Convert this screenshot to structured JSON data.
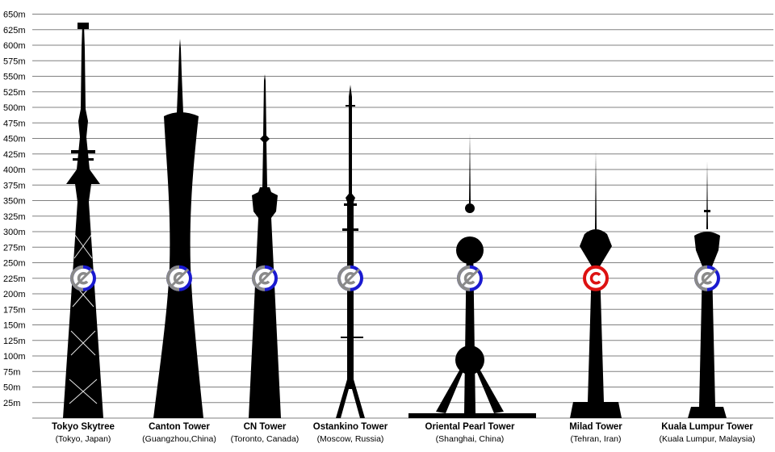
{
  "axis": {
    "unit": "m",
    "tick_labels": [
      "25m",
      "50m",
      "75m",
      "100m",
      "125m",
      "150m",
      "175m",
      "200m",
      "225m",
      "250m",
      "275m",
      "300m",
      "325m",
      "350m",
      "375m",
      "400m",
      "425m",
      "450m",
      "475m",
      "500m",
      "525m",
      "550m",
      "575m",
      "600m",
      "625m",
      "650m"
    ]
  },
  "towers": [
    {
      "name": "Tokyo Skytree",
      "location": "(Tokyo, Japan)",
      "height_m": 634,
      "badge": "public-domain-icon"
    },
    {
      "name": "Canton Tower",
      "location": "(Guangzhou,China)",
      "height_m": 610,
      "badge": "public-domain-icon"
    },
    {
      "name": "CN Tower",
      "location": "(Toronto, Canada)",
      "height_m": 553,
      "badge": "public-domain-icon"
    },
    {
      "name": "Ostankino Tower",
      "location": "(Moscow, Russia)",
      "height_m": 540,
      "badge": "public-domain-icon"
    },
    {
      "name": "Oriental Pearl Tower",
      "location": "(Shanghai, China)",
      "height_m": 468,
      "badge": "public-domain-icon"
    },
    {
      "name": "Milad Tower",
      "location": "(Tehran, Iran)",
      "height_m": 435,
      "badge": "copyright-icon"
    },
    {
      "name": "Kuala Lumpur Tower",
      "location": "(Kuala Lumpur, Malaysia)",
      "height_m": 421,
      "badge": "public-domain-icon"
    }
  ],
  "colors": {
    "silhouette": "#000000",
    "gridline": "#808080",
    "pd_blue": "#1a1ad0",
    "pd_gray": "#8a8a8a",
    "copyright_red": "#dd1111"
  }
}
